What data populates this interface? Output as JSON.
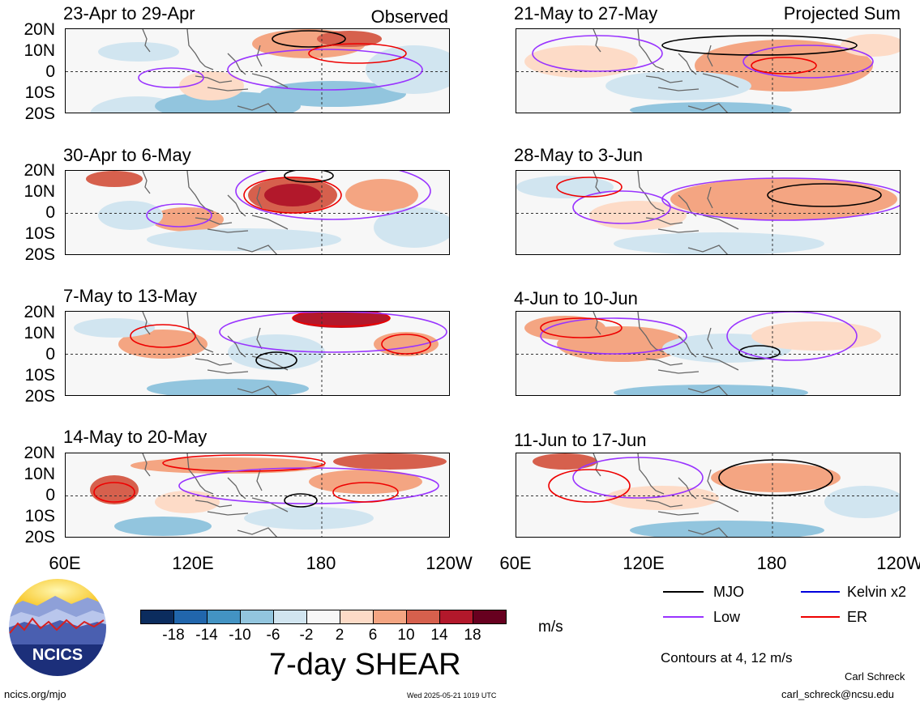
{
  "panels_left_tag": "Observed",
  "panels_right_tag": "Projected Sum",
  "panels": [
    {
      "title": "23-Apr to 29-Apr",
      "column": "left"
    },
    {
      "title": "30-Apr to 6-May",
      "column": "left"
    },
    {
      "title": "7-May to 13-May",
      "column": "left"
    },
    {
      "title": "14-May to 20-May",
      "column": "left"
    },
    {
      "title": "21-May to 27-May",
      "column": "right"
    },
    {
      "title": "28-May to 3-Jun",
      "column": "right"
    },
    {
      "title": "4-Jun to 10-Jun",
      "column": "right"
    },
    {
      "title": "11-Jun to 17-Jun",
      "column": "right"
    }
  ],
  "lat_labels": [
    "20N",
    "10N",
    "0",
    "10S",
    "20S"
  ],
  "lon_labels": [
    "60E",
    "120E",
    "180",
    "120W"
  ],
  "colorbar": {
    "colors": [
      "#0b2c5e",
      "#2166ac",
      "#4393c3",
      "#92c5de",
      "#d1e5f0",
      "#f7f7f7",
      "#fddbc7",
      "#f4a582",
      "#d6604d",
      "#b2182b",
      "#67001f"
    ],
    "ticks": [
      "-18",
      "-14",
      "-10",
      "-6",
      "-2",
      "2",
      "6",
      "10",
      "14",
      "18"
    ],
    "unit": "m/s"
  },
  "title": "7-day SHEAR",
  "legend": [
    {
      "label": "MJO",
      "color": "#000000"
    },
    {
      "label": "Kelvin x2",
      "color": "#0000dd"
    },
    {
      "label": "Low",
      "color": "#9933ff"
    },
    {
      "label": "ER",
      "color": "#ee0000"
    }
  ],
  "contours_note": "Contours at 4, 12 m/s",
  "author": "Carl Schreck",
  "email": "carl_schreck@ncsu.edu",
  "website": "ncics.org/mjo",
  "timestamp": "Wed 2025-05-21 1019 UTC",
  "logo_text": "NCICS"
}
